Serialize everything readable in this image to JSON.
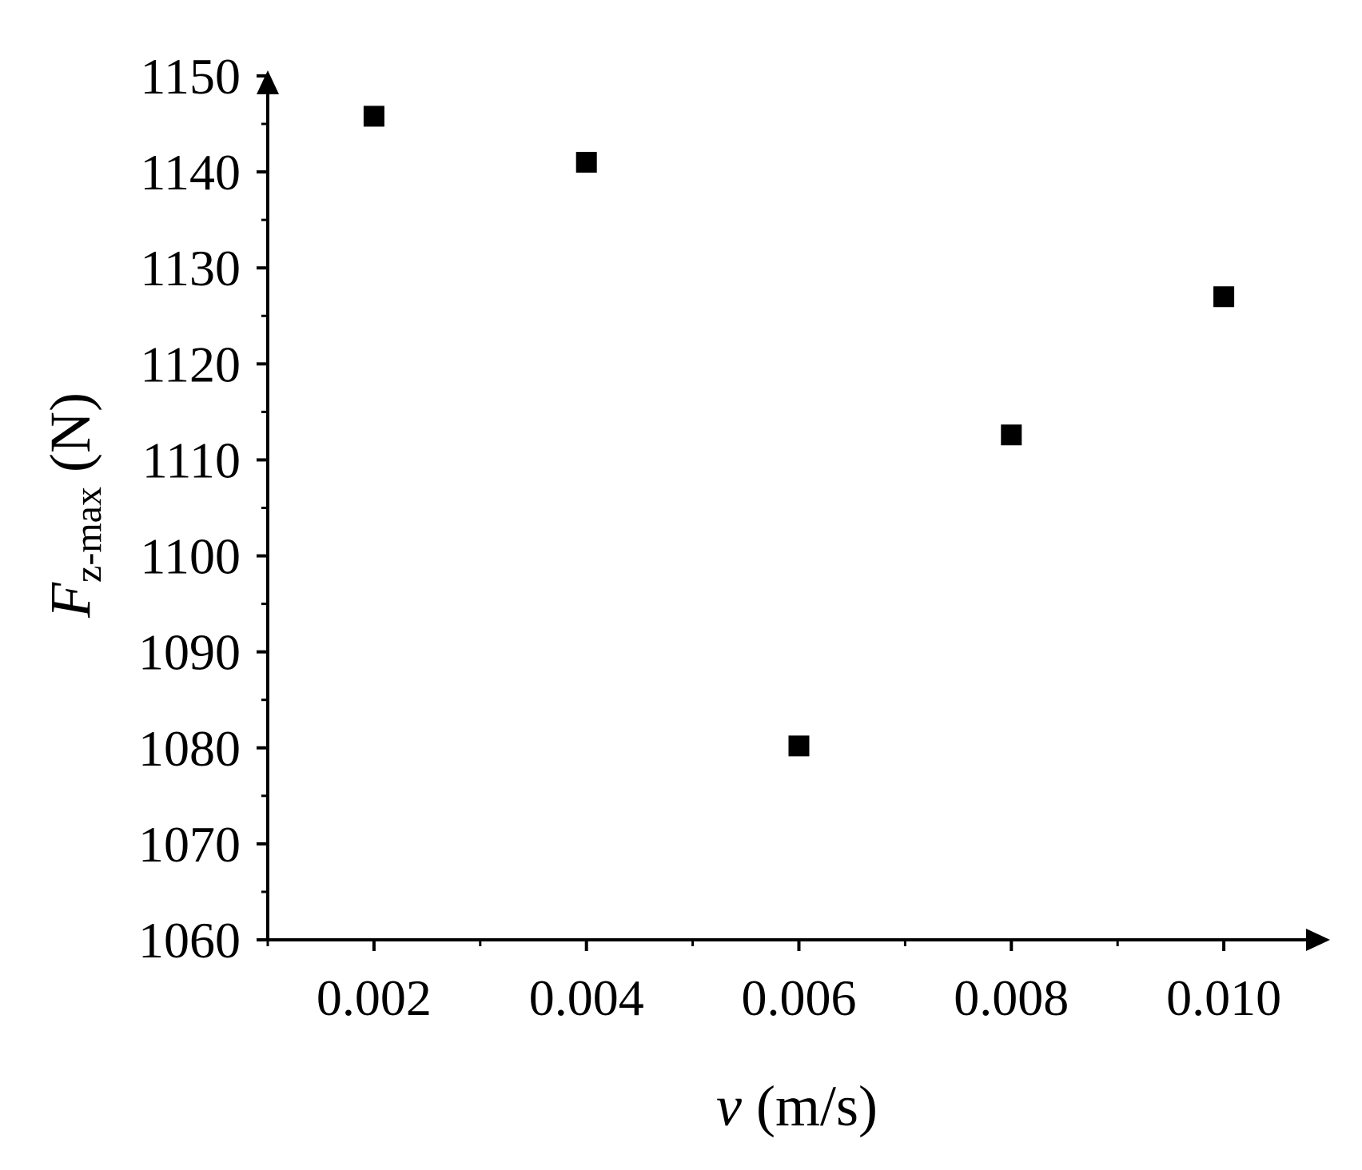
{
  "chart_data": {
    "type": "scatter",
    "x_label": {
      "symbol": "v",
      "unit": "(m/s)"
    },
    "y_label": {
      "symbol": "F",
      "subscript": "z-max",
      "unit": "(N)"
    },
    "x": [
      0.002,
      0.004,
      0.006,
      0.008,
      0.01
    ],
    "values": [
      1145.8,
      1141,
      1080.2,
      1112.6,
      1127
    ],
    "color": "#000000",
    "xlim": [
      0.001,
      0.011
    ],
    "xticks": [
      {
        "value": 0.002,
        "label": "0.002"
      },
      {
        "value": 0.004,
        "label": "0.004"
      },
      {
        "value": 0.006,
        "label": "0.006"
      },
      {
        "value": 0.008,
        "label": "0.008"
      },
      {
        "value": 0.01,
        "label": "0.010"
      }
    ],
    "ylim": [
      1060,
      1150
    ],
    "yticks": [
      1060,
      1070,
      1080,
      1090,
      1100,
      1110,
      1120,
      1130,
      1140,
      1150
    ],
    "grid": false
  }
}
